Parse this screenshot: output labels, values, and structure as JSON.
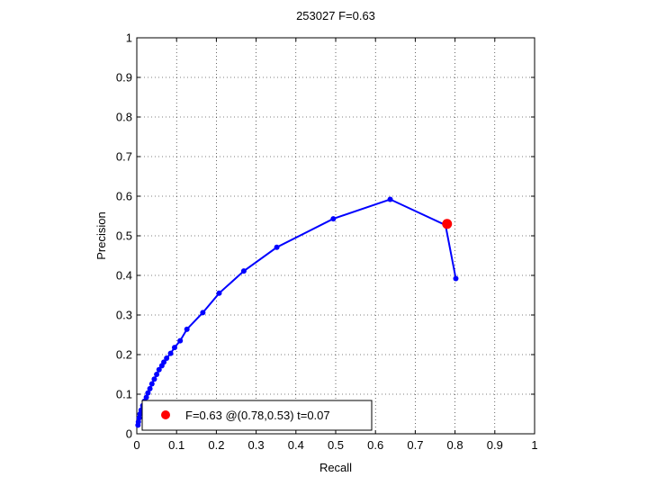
{
  "chart_data": {
    "type": "line",
    "title": "253027 F=0.63",
    "xlabel": "Recall",
    "ylabel": "Precision",
    "xlim": [
      0,
      1
    ],
    "ylim": [
      0,
      1
    ],
    "xticks": [
      0,
      0.1,
      0.2,
      0.3,
      0.4,
      0.5,
      0.6,
      0.7,
      0.8,
      0.9,
      1
    ],
    "yticks": [
      0,
      0.1,
      0.2,
      0.3,
      0.4,
      0.5,
      0.6,
      0.7,
      0.8,
      0.9,
      1
    ],
    "xtick_labels": [
      "0",
      "0.1",
      "0.2",
      "0.3",
      "0.4",
      "0.5",
      "0.6",
      "0.7",
      "0.8",
      "0.9",
      "1"
    ],
    "ytick_labels": [
      "0",
      "0.1",
      "0.2",
      "0.3",
      "0.4",
      "0.5",
      "0.6",
      "0.7",
      "0.8",
      "0.9",
      "1"
    ],
    "grid": true,
    "legend_position": "bottom-left",
    "series": [
      {
        "color": "#0000ff",
        "x": [
          0.802,
          0.776,
          0.637,
          0.494,
          0.352,
          0.269,
          0.207,
          0.166,
          0.126,
          0.109,
          0.095,
          0.085,
          0.075,
          0.068,
          0.063,
          0.056,
          0.05,
          0.044,
          0.038,
          0.033,
          0.028,
          0.024,
          0.019,
          0.015,
          0.011,
          0.008,
          0.006,
          0.004,
          0.003
        ],
        "y": [
          0.392,
          0.527,
          0.592,
          0.543,
          0.471,
          0.411,
          0.355,
          0.306,
          0.264,
          0.235,
          0.218,
          0.203,
          0.191,
          0.181,
          0.172,
          0.162,
          0.15,
          0.138,
          0.126,
          0.114,
          0.103,
          0.092,
          0.082,
          0.071,
          0.06,
          0.05,
          0.04,
          0.03,
          0.022
        ]
      }
    ],
    "best_point": {
      "x": 0.78,
      "y": 0.53,
      "color": "#ff0000"
    },
    "legend": {
      "label": "F=0.63 @(0.78,0.53) t=0.07"
    }
  }
}
